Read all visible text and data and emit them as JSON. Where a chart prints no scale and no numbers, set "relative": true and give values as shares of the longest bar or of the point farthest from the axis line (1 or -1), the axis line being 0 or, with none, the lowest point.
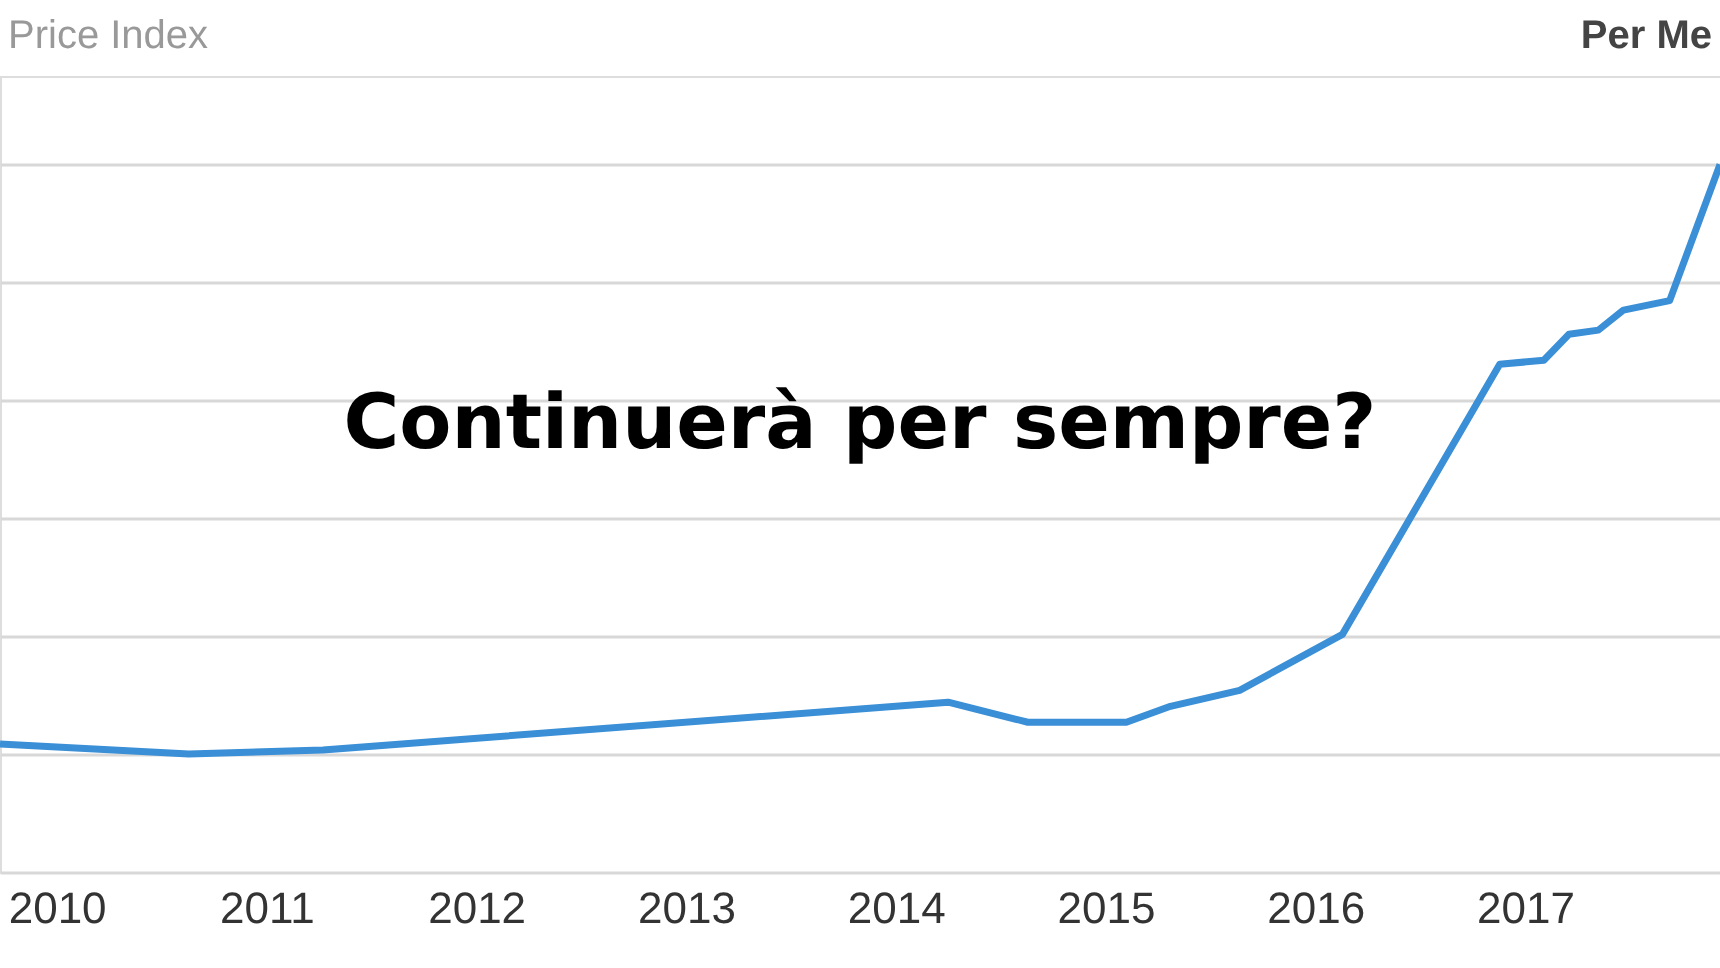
{
  "chart_data": {
    "type": "line",
    "relative": true,
    "title": "Price Index",
    "annotations": [
      "Per Me",
      "Continuerà per sempre?"
    ],
    "x": [
      2009.73,
      2010.63,
      2011.27,
      2014.25,
      2014.63,
      2015.1,
      2015.31,
      2015.64,
      2016.13,
      2016.88,
      2017.09,
      2017.21,
      2017.35,
      2017.47,
      2017.69,
      2017.93
    ],
    "series": [
      {
        "color": "#3a8fd6",
        "values": [
          0.017,
          0,
          0.007,
          0.088,
          0.054,
          0.054,
          0.081,
          0.108,
          0.203,
          0.661,
          0.668,
          0.712,
          0.719,
          0.753,
          0.769,
          1
        ]
      }
    ],
    "xlim": [
      2009.73,
      2017.93
    ],
    "xticks": [
      2010,
      2011,
      2012,
      2013,
      2014,
      2015,
      2016,
      2017
    ],
    "grid": "y",
    "marker": "none",
    "line_style": "solid"
  }
}
